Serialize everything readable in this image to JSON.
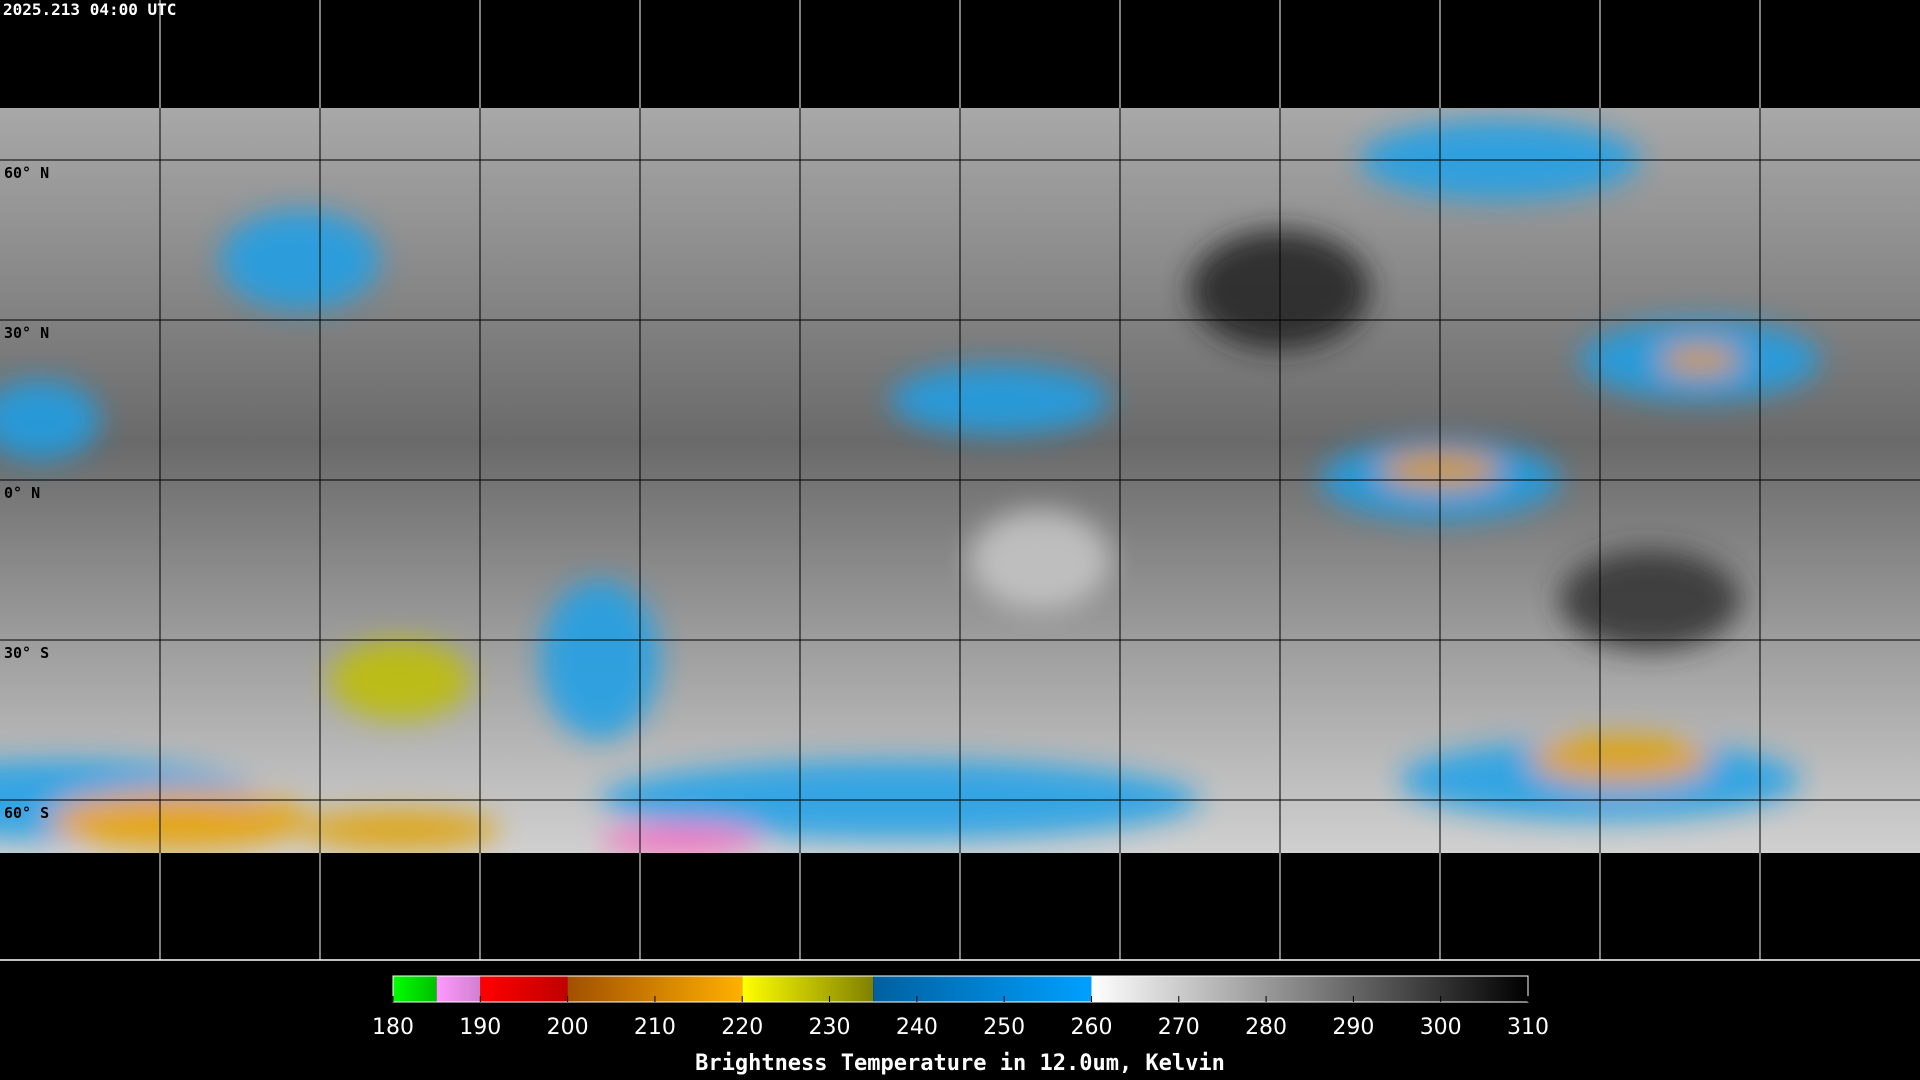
{
  "title": "2025.213 04:00 UTC",
  "map": {
    "lon_range": [
      -180,
      180
    ],
    "lat_range": [
      -90,
      90
    ],
    "lon_lines": [
      -150,
      -120,
      -90,
      -60,
      -30,
      0,
      30,
      60,
      90,
      120,
      150
    ],
    "lat_lines": [
      {
        "value": 60,
        "label": "60° N"
      },
      {
        "value": 30,
        "label": "30° N"
      },
      {
        "value": 0,
        "label": "0° N"
      },
      {
        "value": -30,
        "label": "30° S"
      },
      {
        "value": -60,
        "label": "60° S"
      }
    ]
  },
  "colorbar": {
    "range": [
      180,
      310
    ],
    "ticks": [
      180,
      190,
      200,
      210,
      220,
      230,
      240,
      250,
      260,
      270,
      280,
      290,
      300,
      310
    ],
    "label": "Brightness Temperature in 12.0um, Kelvin",
    "segments": [
      {
        "from": 180,
        "to": 185,
        "colors": [
          "#00ff00",
          "#00c000"
        ]
      },
      {
        "from": 185,
        "to": 190,
        "colors": [
          "#ff99ff",
          "#d080d0"
        ]
      },
      {
        "from": 190,
        "to": 200,
        "colors": [
          "#ff0000",
          "#c00000"
        ]
      },
      {
        "from": 200,
        "to": 220,
        "colors": [
          "#a05000",
          "#ffb000"
        ]
      },
      {
        "from": 220,
        "to": 235,
        "colors": [
          "#ffff00",
          "#808000"
        ]
      },
      {
        "from": 235,
        "to": 260,
        "colors": [
          "#0060a0",
          "#00a0ff"
        ]
      },
      {
        "from": 260,
        "to": 310,
        "colors": [
          "#ffffff",
          "#000000"
        ]
      }
    ]
  }
}
